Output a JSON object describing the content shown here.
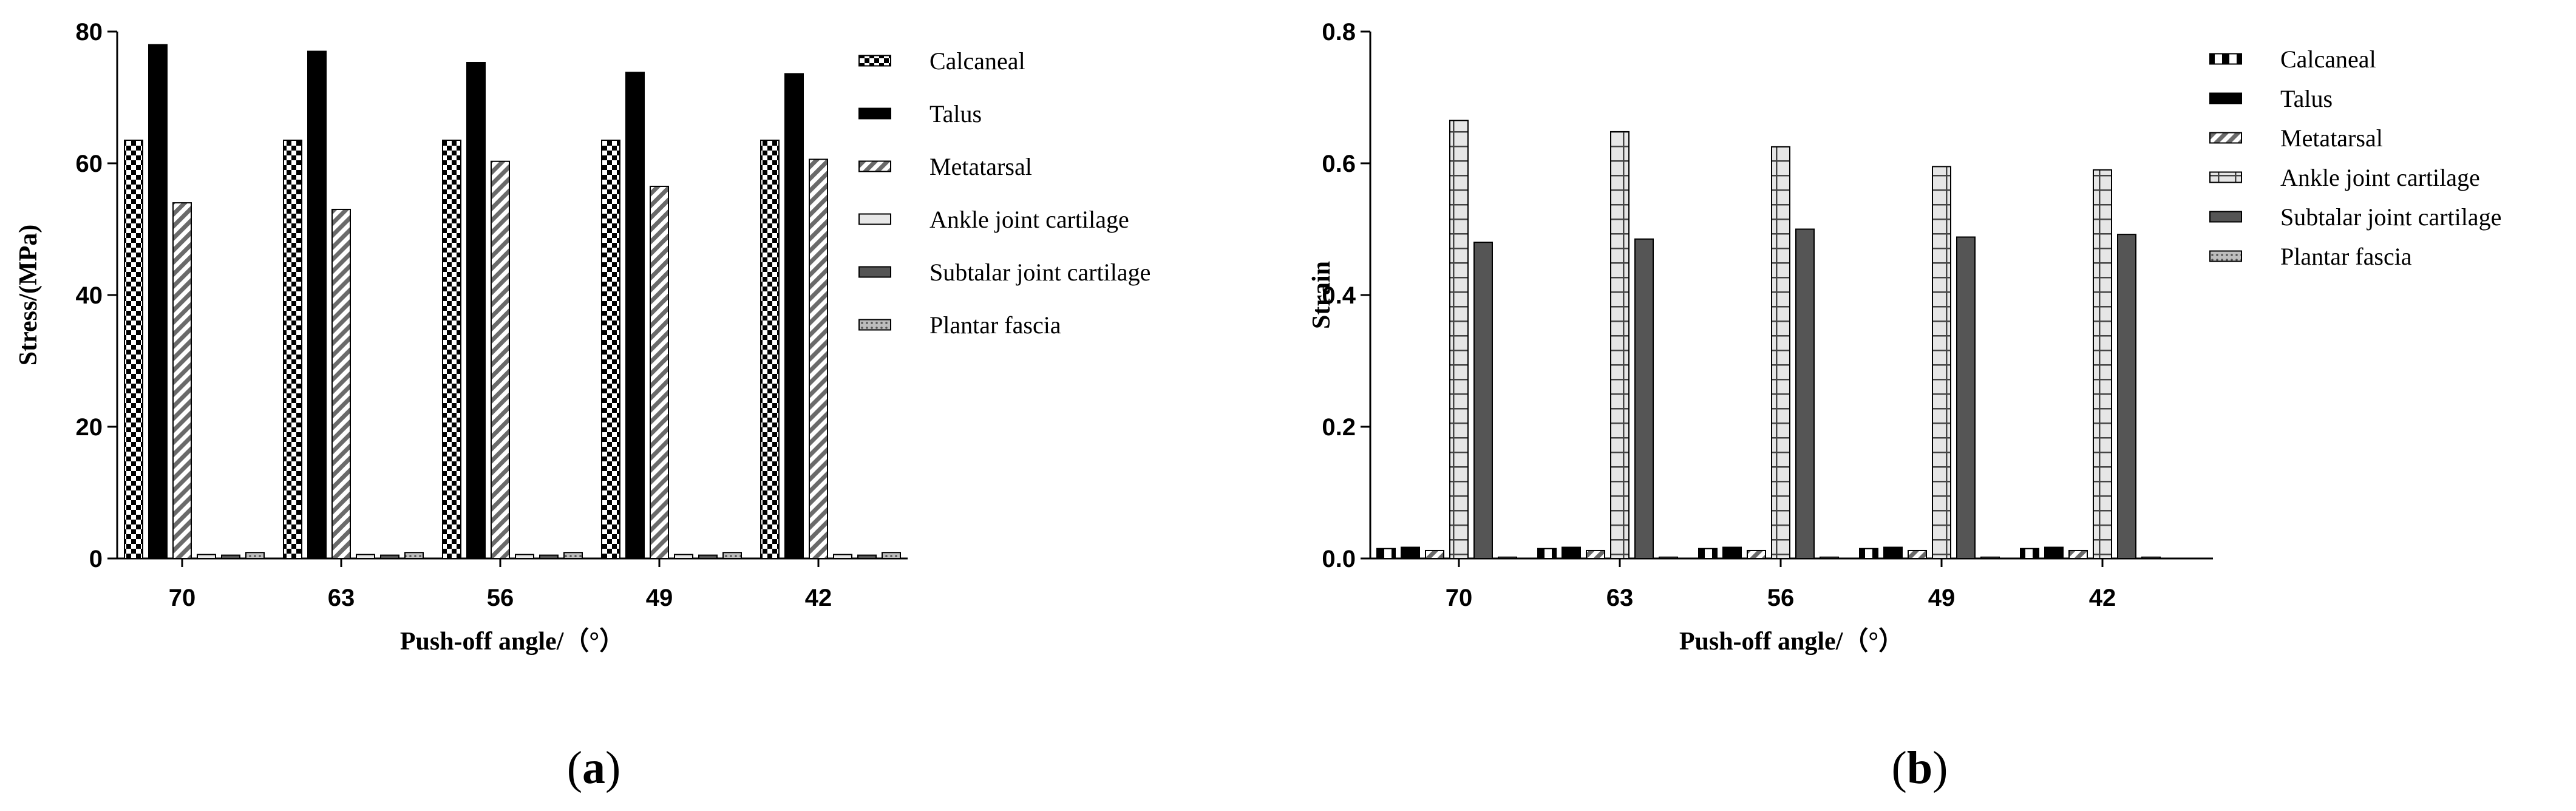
{
  "chart_data": [
    {
      "type": "bar",
      "panel_label": "a",
      "categories": [
        "70",
        "63",
        "56",
        "49",
        "42"
      ],
      "series": [
        {
          "name": "Calcaneal",
          "values": [
            63.5,
            63.5,
            63.5,
            63.5,
            63.5
          ]
        },
        {
          "name": "Talus",
          "values": [
            78.0,
            77.0,
            75.3,
            73.8,
            73.6
          ]
        },
        {
          "name": "Metatarsal",
          "values": [
            54.0,
            53.0,
            60.3,
            56.5,
            60.6
          ]
        },
        {
          "name": "Ankle joint cartilage",
          "values": [
            0.6,
            0.6,
            0.6,
            0.6,
            0.6
          ]
        },
        {
          "name": "Subtalar joint cartilage",
          "values": [
            0.5,
            0.5,
            0.5,
            0.5,
            0.5
          ]
        },
        {
          "name": "Plantar fascia",
          "values": [
            0.9,
            0.9,
            0.9,
            0.9,
            0.9
          ]
        }
      ],
      "xlabel": "Push-off angle/（°）",
      "ylabel": "Stress/(MPa)",
      "ylim": [
        0,
        80
      ],
      "yticks": [
        "0",
        "20",
        "40",
        "60",
        "80"
      ],
      "legend_position": "right"
    },
    {
      "type": "bar",
      "panel_label": "b",
      "categories": [
        "70",
        "63",
        "56",
        "49",
        "42"
      ],
      "series": [
        {
          "name": "Calcaneal",
          "values": [
            0.015,
            0.015,
            0.015,
            0.015,
            0.015
          ]
        },
        {
          "name": "Talus",
          "values": [
            0.017,
            0.017,
            0.017,
            0.017,
            0.017
          ]
        },
        {
          "name": "Metatarsal",
          "values": [
            0.012,
            0.012,
            0.012,
            0.012,
            0.012
          ]
        },
        {
          "name": "Ankle joint cartilage",
          "values": [
            0.665,
            0.648,
            0.625,
            0.595,
            0.59
          ]
        },
        {
          "name": "Subtalar joint cartilage",
          "values": [
            0.48,
            0.485,
            0.5,
            0.488,
            0.492
          ]
        },
        {
          "name": "Plantar fascia",
          "values": [
            0.002,
            0.002,
            0.002,
            0.002,
            0.002
          ]
        }
      ],
      "xlabel": "Push-off angle/（°）",
      "ylabel": "Strain",
      "ylim": [
        0,
        0.8
      ],
      "yticks": [
        "0.0",
        "0.2",
        "0.4",
        "0.6",
        "0.8"
      ],
      "legend_position": "right"
    }
  ]
}
